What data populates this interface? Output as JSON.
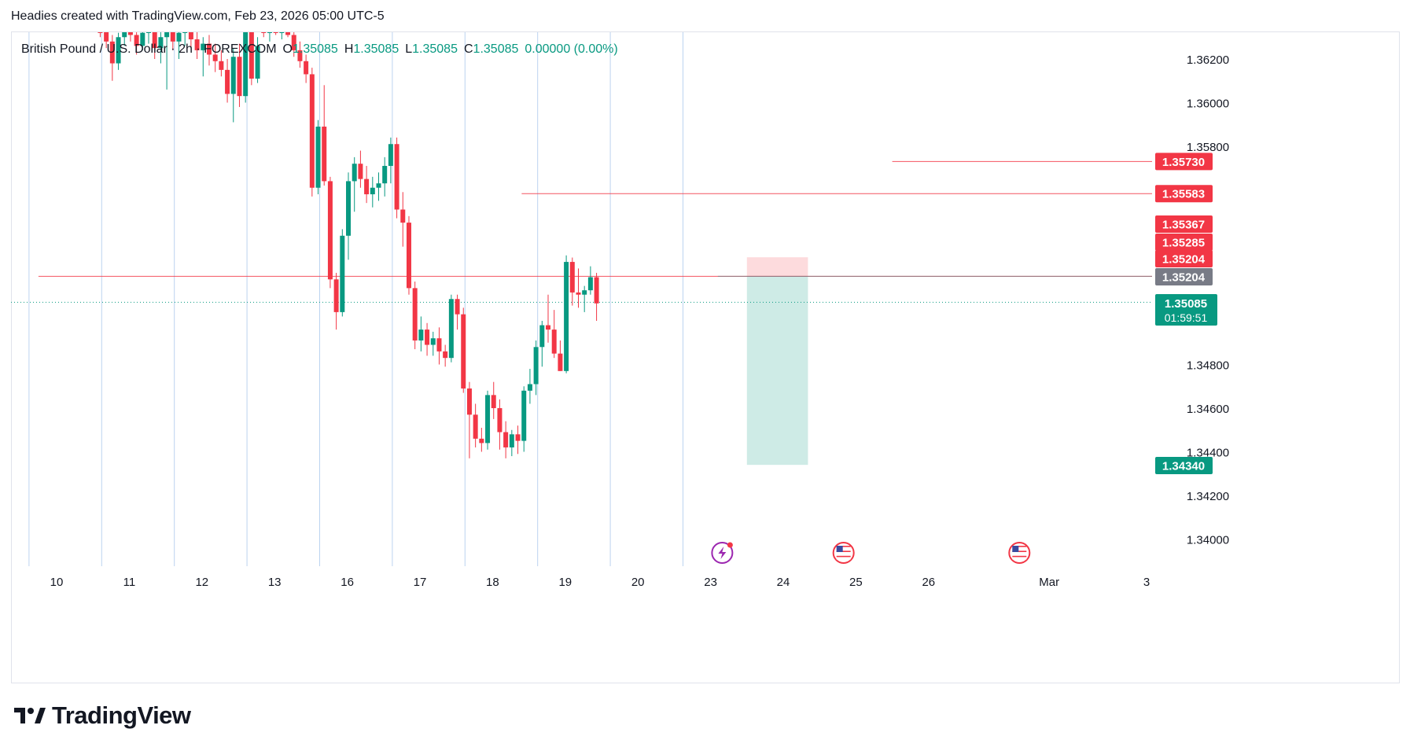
{
  "header": {
    "attribution": "Headies created with TradingView.com, Feb 23, 2026 05:00 UTC-5"
  },
  "legend": {
    "symbol": "British Pound / U.S. Dollar · 2h · FOREXCOM",
    "o_label": "O",
    "o_value": "1.35085",
    "h_label": "H",
    "h_value": "1.35085",
    "l_label": "L",
    "l_value": "1.35085",
    "c_label": "C",
    "c_value": "1.35085",
    "change": "0.00000 (0.00%)"
  },
  "brand": {
    "name": "TradingView"
  },
  "colors": {
    "up": "#089981",
    "down": "#f23645",
    "grid": "#bcd3f0",
    "axis_text": "#131722",
    "gray_tag": "#787b86"
  },
  "chart_data": {
    "type": "candlestick",
    "symbol": "GBPUSD",
    "timeframe": "2h",
    "ylim": [
      1.3395,
      1.3638
    ],
    "y_ticks": [
      "1.36200",
      "1.36000",
      "1.35800",
      "1.34800",
      "1.34600",
      "1.34400",
      "1.34200",
      "1.34000"
    ],
    "x_ticks": [
      {
        "label": "10",
        "x": 0
      },
      {
        "label": "11",
        "x": 1
      },
      {
        "label": "12",
        "x": 2
      },
      {
        "label": "13",
        "x": 3
      },
      {
        "label": "16",
        "x": 4
      },
      {
        "label": "17",
        "x": 5
      },
      {
        "label": "18",
        "x": 6
      },
      {
        "label": "19",
        "x": 7
      },
      {
        "label": "20",
        "x": 8
      },
      {
        "label": "23",
        "x": 9
      },
      {
        "label": "24",
        "x": 10
      },
      {
        "label": "25",
        "x": 11
      },
      {
        "label": "26",
        "x": 12
      },
      {
        "label": "Mar",
        "x": 13.66
      },
      {
        "label": "3",
        "x": 15
      }
    ],
    "candles_start_x": 0.6,
    "candle_step": 0.0833,
    "candles": [
      [
        1.3636,
        1.3638,
        1.363,
        1.3634
      ],
      [
        1.3634,
        1.3636,
        1.3625,
        1.3628
      ],
      [
        1.3628,
        1.3631,
        1.361,
        1.3618
      ],
      [
        1.3618,
        1.3632,
        1.3615,
        1.363
      ],
      [
        1.363,
        1.3638,
        1.3626,
        1.3636
      ],
      [
        1.3636,
        1.3637,
        1.3628,
        1.3631
      ],
      [
        1.3631,
        1.3634,
        1.3622,
        1.3626
      ],
      [
        1.3626,
        1.3633,
        1.3624,
        1.3632
      ],
      [
        1.3632,
        1.3636,
        1.3627,
        1.3634
      ],
      [
        1.3634,
        1.3637,
        1.362,
        1.3625
      ],
      [
        1.3625,
        1.3633,
        1.3618,
        1.363
      ],
      [
        1.363,
        1.3638,
        1.3606,
        1.3635
      ],
      [
        1.3635,
        1.3638,
        1.3624,
        1.3628
      ],
      [
        1.3628,
        1.3635,
        1.362,
        1.3632
      ],
      [
        1.3632,
        1.3638,
        1.3626,
        1.3636
      ],
      [
        1.3636,
        1.3637,
        1.3625,
        1.3629
      ],
      [
        1.3629,
        1.3633,
        1.362,
        1.3624
      ],
      [
        1.3624,
        1.363,
        1.3612,
        1.3627
      ],
      [
        1.3627,
        1.3631,
        1.3617,
        1.3622
      ],
      [
        1.3622,
        1.3627,
        1.3614,
        1.3619
      ],
      [
        1.3619,
        1.3624,
        1.3612,
        1.3615
      ],
      [
        1.3615,
        1.362,
        1.36,
        1.3604
      ],
      [
        1.3604,
        1.3625,
        1.3591,
        1.3621
      ],
      [
        1.3621,
        1.3627,
        1.3598,
        1.3603
      ],
      [
        1.3603,
        1.3638,
        1.36,
        1.3636
      ],
      [
        1.3636,
        1.3638,
        1.3608,
        1.3611
      ],
      [
        1.3611,
        1.363,
        1.3609,
        1.3626
      ],
      [
        1.3638,
        1.3638,
        1.363,
        1.3633
      ],
      [
        1.3633,
        1.3637,
        1.3628,
        1.3635
      ],
      [
        1.3635,
        1.3638,
        1.3631,
        1.3632
      ],
      [
        1.3632,
        1.3637,
        1.3629,
        1.3634
      ],
      [
        1.3634,
        1.3638,
        1.363,
        1.3631
      ],
      [
        1.3631,
        1.3636,
        1.3621,
        1.3624
      ],
      [
        1.3624,
        1.3628,
        1.3616,
        1.3619
      ],
      [
        1.3619,
        1.3622,
        1.3609,
        1.3613
      ],
      [
        1.3613,
        1.3616,
        1.3557,
        1.3561
      ],
      [
        1.3561,
        1.3592,
        1.3558,
        1.3589
      ],
      [
        1.3589,
        1.3608,
        1.3562,
        1.3564
      ],
      [
        1.3564,
        1.3566,
        1.3515,
        1.3519
      ],
      [
        1.3519,
        1.3522,
        1.3496,
        1.3504
      ],
      [
        1.3504,
        1.3542,
        1.3502,
        1.3539
      ],
      [
        1.3539,
        1.3568,
        1.3528,
        1.3564
      ],
      [
        1.3564,
        1.3575,
        1.355,
        1.3572
      ],
      [
        1.3572,
        1.3578,
        1.3561,
        1.3565
      ],
      [
        1.3565,
        1.3571,
        1.3554,
        1.3558
      ],
      [
        1.3558,
        1.3566,
        1.3552,
        1.3561
      ],
      [
        1.3561,
        1.3568,
        1.3555,
        1.3563
      ],
      [
        1.3563,
        1.3575,
        1.3557,
        1.3571
      ],
      [
        1.3571,
        1.3584,
        1.3563,
        1.3581
      ],
      [
        1.3581,
        1.3584,
        1.3547,
        1.3551
      ],
      [
        1.3551,
        1.3559,
        1.3534,
        1.3545
      ],
      [
        1.3545,
        1.3548,
        1.3512,
        1.3515
      ],
      [
        1.3515,
        1.3518,
        1.3487,
        1.3491
      ],
      [
        1.3491,
        1.3502,
        1.3486,
        1.3496
      ],
      [
        1.3496,
        1.3499,
        1.3484,
        1.3489
      ],
      [
        1.3489,
        1.3495,
        1.3484,
        1.3492
      ],
      [
        1.3492,
        1.3497,
        1.348,
        1.3486
      ],
      [
        1.3486,
        1.3489,
        1.3479,
        1.3483
      ],
      [
        1.3483,
        1.3512,
        1.3481,
        1.351
      ],
      [
        1.351,
        1.3512,
        1.3496,
        1.3503
      ],
      [
        1.3503,
        1.3506,
        1.3467,
        1.3469
      ],
      [
        1.3469,
        1.3472,
        1.3437,
        1.3457
      ],
      [
        1.3457,
        1.3462,
        1.3442,
        1.3446
      ],
      [
        1.3446,
        1.3451,
        1.344,
        1.3444
      ],
      [
        1.3444,
        1.3468,
        1.3441,
        1.3466
      ],
      [
        1.3466,
        1.3472,
        1.3455,
        1.346
      ],
      [
        1.346,
        1.3464,
        1.3441,
        1.3449
      ],
      [
        1.3449,
        1.3454,
        1.3437,
        1.3442
      ],
      [
        1.3442,
        1.345,
        1.3438,
        1.3448
      ],
      [
        1.3448,
        1.3452,
        1.3439,
        1.3445
      ],
      [
        1.3445,
        1.347,
        1.344,
        1.3468
      ],
      [
        1.3468,
        1.3478,
        1.3462,
        1.3471
      ],
      [
        1.3471,
        1.3491,
        1.3466,
        1.3488
      ],
      [
        1.3488,
        1.35,
        1.3479,
        1.3498
      ],
      [
        1.3498,
        1.3512,
        1.349,
        1.3496
      ],
      [
        1.3496,
        1.3505,
        1.3483,
        1.3485
      ],
      [
        1.3485,
        1.3491,
        1.3477,
        1.3477
      ],
      [
        1.3477,
        1.353,
        1.3476,
        1.3527
      ],
      [
        1.3527,
        1.3529,
        1.3507,
        1.3513
      ],
      [
        1.3513,
        1.3524,
        1.3506,
        1.3512
      ],
      [
        1.3512,
        1.3516,
        1.3504,
        1.3514
      ],
      [
        1.3514,
        1.3525,
        1.3512,
        1.352
      ],
      [
        1.352,
        1.3522,
        1.35,
        1.3508
      ]
    ],
    "levels": [
      {
        "price": 1.3573,
        "label": "1.35730",
        "style": "red",
        "x_start": 11.5
      },
      {
        "price": 1.35583,
        "label": "1.35583",
        "style": "red",
        "x_start": 6.4
      },
      {
        "price": 1.35367,
        "label": "1.35367",
        "style": "red-tag"
      },
      {
        "price": 1.35285,
        "label": "1.35285",
        "style": "red-tag"
      },
      {
        "price": 1.35204,
        "label": "1.35204",
        "style": "red",
        "x_start": -0.25
      },
      {
        "price": 1.35204,
        "label": "1.35204",
        "style": "gray",
        "x_start": 9.1
      }
    ],
    "position": {
      "type": "long",
      "entry": 1.35204,
      "stop": 1.35285,
      "target": 1.3434,
      "x_start": 9.5,
      "x_end": 10.34
    },
    "current": {
      "price": 1.35085,
      "label": "1.35085",
      "countdown": "01:59:51"
    },
    "target_label": "1.34340",
    "session_lines_x": [
      -0.38,
      0.62,
      1.62,
      2.62,
      3.62,
      4.62,
      5.62,
      6.62,
      7.62,
      8.62
    ],
    "events": [
      {
        "icon": "lightning-event-icon",
        "x": 9.16
      },
      {
        "icon": "us-flag-event-icon",
        "x": 10.83
      },
      {
        "icon": "us-flag-event-icon",
        "x": 13.25
      }
    ]
  }
}
